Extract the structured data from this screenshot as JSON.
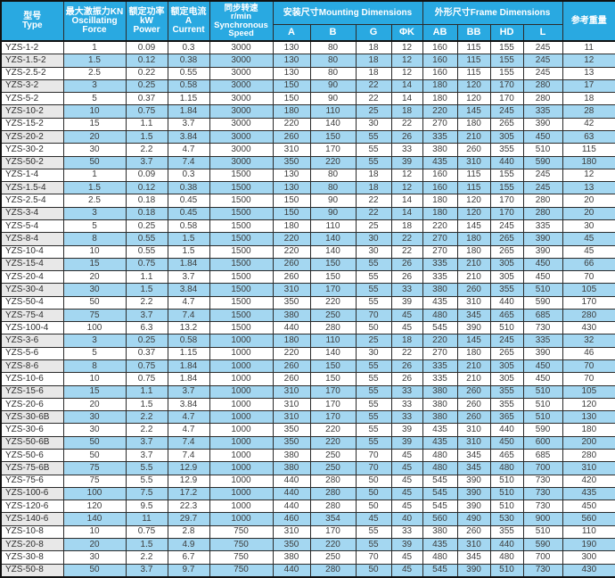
{
  "colors": {
    "header_blue": "#29a9e1",
    "stripe_blue": "#a4d7f1",
    "type_stripe_gray": "#e8e8e8",
    "border_dark": "#111111",
    "text_dark": "#3c3c3c"
  },
  "table": {
    "header_type": "型号\nType",
    "header_force": "最大激振力KN\nOscillating\nForce",
    "header_power": "额定功率\nkW\nPower",
    "header_current": "额定电流\nA\nCurrent",
    "header_speed": "同步转速\nr/min\nSynchronous\nSpeed",
    "header_mounting_group": "安装尺寸Mounting Dimensions",
    "header_frame_group": "外形尺寸Frame Dimensions",
    "header_weight": "参考重量",
    "sub_headers": {
      "a": "A",
      "b": "B",
      "g": "G",
      "phik": "ΦK",
      "ab": "AB",
      "bb": "BB",
      "hd": "HD",
      "l": "L"
    }
  },
  "chart_data": {
    "type": "table",
    "title": "YZS vibration motor specifications",
    "columns": [
      "型号 Type",
      "最大激振力KN Oscillating Force",
      "额定功率 kW Power",
      "额定电流 A Current",
      "同步转速 r/min Synchronous Speed",
      "A",
      "B",
      "G",
      "ΦK",
      "AB",
      "BB",
      "HD",
      "L",
      "参考重量"
    ],
    "column_groups": [
      {
        "label": "安装尺寸Mounting Dimensions",
        "columns": [
          "A",
          "B",
          "G",
          "ΦK"
        ]
      },
      {
        "label": "外形尺寸Frame Dimensions",
        "columns": [
          "AB",
          "BB",
          "HD",
          "L"
        ]
      }
    ],
    "rows": [
      [
        "YZS-1-2",
        "1",
        "0.09",
        "0.3",
        "3000",
        "130",
        "80",
        "18",
        "12",
        "160",
        "115",
        "155",
        "245",
        "11"
      ],
      [
        "YZS-1.5-2",
        "1.5",
        "0.12",
        "0.38",
        "3000",
        "130",
        "80",
        "18",
        "12",
        "160",
        "115",
        "155",
        "245",
        "12"
      ],
      [
        "YZS-2.5-2",
        "2.5",
        "0.22",
        "0.55",
        "3000",
        "130",
        "80",
        "18",
        "12",
        "160",
        "115",
        "155",
        "245",
        "13"
      ],
      [
        "YZS-3-2",
        "3",
        "0.25",
        "0.58",
        "3000",
        "150",
        "90",
        "22",
        "14",
        "180",
        "120",
        "170",
        "280",
        "17"
      ],
      [
        "YZS-5-2",
        "5",
        "0.37",
        "1.15",
        "3000",
        "150",
        "90",
        "22",
        "14",
        "180",
        "120",
        "170",
        "280",
        "18"
      ],
      [
        "YZS-10-2",
        "10",
        "0.75",
        "1.84",
        "3000",
        "180",
        "110",
        "25",
        "18",
        "220",
        "145",
        "245",
        "335",
        "28"
      ],
      [
        "YZS-15-2",
        "15",
        "1.1",
        "3.7",
        "3000",
        "220",
        "140",
        "30",
        "22",
        "270",
        "180",
        "265",
        "390",
        "42"
      ],
      [
        "YZS-20-2",
        "20",
        "1.5",
        "3.84",
        "3000",
        "260",
        "150",
        "55",
        "26",
        "335",
        "210",
        "305",
        "450",
        "63"
      ],
      [
        "YZS-30-2",
        "30",
        "2.2",
        "4.7",
        "3000",
        "310",
        "170",
        "55",
        "33",
        "380",
        "260",
        "355",
        "510",
        "115"
      ],
      [
        "YZS-50-2",
        "50",
        "3.7",
        "7.4",
        "3000",
        "350",
        "220",
        "55",
        "39",
        "435",
        "310",
        "440",
        "590",
        "180"
      ],
      [
        "YZS-1-4",
        "1",
        "0.09",
        "0.3",
        "1500",
        "130",
        "80",
        "18",
        "12",
        "160",
        "115",
        "155",
        "245",
        "12"
      ],
      [
        "YZS-1.5-4",
        "1.5",
        "0.12",
        "0.38",
        "1500",
        "130",
        "80",
        "18",
        "12",
        "160",
        "115",
        "155",
        "245",
        "13"
      ],
      [
        "YZS-2.5-4",
        "2.5",
        "0.18",
        "0.45",
        "1500",
        "150",
        "90",
        "22",
        "14",
        "180",
        "120",
        "170",
        "280",
        "20"
      ],
      [
        "YZS-3-4",
        "3",
        "0.18",
        "0.45",
        "1500",
        "150",
        "90",
        "22",
        "14",
        "180",
        "120",
        "170",
        "280",
        "20"
      ],
      [
        "YZS-5-4",
        "5",
        "0.25",
        "0.58",
        "1500",
        "180",
        "110",
        "25",
        "18",
        "220",
        "145",
        "245",
        "335",
        "30"
      ],
      [
        "YZS-8-4",
        "8",
        "0.55",
        "1.5",
        "1500",
        "220",
        "140",
        "30",
        "22",
        "270",
        "180",
        "265",
        "390",
        "45"
      ],
      [
        "YZS-10-4",
        "10",
        "0.55",
        "1.5",
        "1500",
        "220",
        "140",
        "30",
        "22",
        "270",
        "180",
        "265",
        "390",
        "45"
      ],
      [
        "YZS-15-4",
        "15",
        "0.75",
        "1.84",
        "1500",
        "260",
        "150",
        "55",
        "26",
        "335",
        "210",
        "305",
        "450",
        "66"
      ],
      [
        "YZS-20-4",
        "20",
        "1.1",
        "3.7",
        "1500",
        "260",
        "150",
        "55",
        "26",
        "335",
        "210",
        "305",
        "450",
        "70"
      ],
      [
        "YZS-30-4",
        "30",
        "1.5",
        "3.84",
        "1500",
        "310",
        "170",
        "55",
        "33",
        "380",
        "260",
        "355",
        "510",
        "105"
      ],
      [
        "YZS-50-4",
        "50",
        "2.2",
        "4.7",
        "1500",
        "350",
        "220",
        "55",
        "39",
        "435",
        "310",
        "440",
        "590",
        "170"
      ],
      [
        "YZS-75-4",
        "75",
        "3.7",
        "7.4",
        "1500",
        "380",
        "250",
        "70",
        "45",
        "480",
        "345",
        "465",
        "685",
        "280"
      ],
      [
        "YZS-100-4",
        "100",
        "6.3",
        "13.2",
        "1500",
        "440",
        "280",
        "50",
        "45",
        "545",
        "390",
        "510",
        "730",
        "430"
      ],
      [
        "YZS-3-6",
        "3",
        "0.25",
        "0.58",
        "1000",
        "180",
        "110",
        "25",
        "18",
        "220",
        "145",
        "245",
        "335",
        "32"
      ],
      [
        "YZS-5-6",
        "5",
        "0.37",
        "1.15",
        "1000",
        "220",
        "140",
        "30",
        "22",
        "270",
        "180",
        "265",
        "390",
        "46"
      ],
      [
        "YZS-8-6",
        "8",
        "0.75",
        "1.84",
        "1000",
        "260",
        "150",
        "55",
        "26",
        "335",
        "210",
        "305",
        "450",
        "70"
      ],
      [
        "YZS-10-6",
        "10",
        "0.75",
        "1.84",
        "1000",
        "260",
        "150",
        "55",
        "26",
        "335",
        "210",
        "305",
        "450",
        "70"
      ],
      [
        "YZS-15-6",
        "15",
        "1.1",
        "3.7",
        "1000",
        "310",
        "170",
        "55",
        "33",
        "380",
        "260",
        "355",
        "510",
        "105"
      ],
      [
        "YZS-20-6",
        "20",
        "1.5",
        "3.84",
        "1000",
        "310",
        "170",
        "55",
        "33",
        "380",
        "260",
        "355",
        "510",
        "120"
      ],
      [
        "YZS-30-6B",
        "30",
        "2.2",
        "4.7",
        "1000",
        "310",
        "170",
        "55",
        "33",
        "380",
        "260",
        "365",
        "510",
        "130"
      ],
      [
        "YZS-30-6",
        "30",
        "2.2",
        "4.7",
        "1000",
        "350",
        "220",
        "55",
        "39",
        "435",
        "310",
        "440",
        "590",
        "180"
      ],
      [
        "YZS-50-6B",
        "50",
        "3.7",
        "7.4",
        "1000",
        "350",
        "220",
        "55",
        "39",
        "435",
        "310",
        "450",
        "600",
        "200"
      ],
      [
        "YZS-50-6",
        "50",
        "3.7",
        "7.4",
        "1000",
        "380",
        "250",
        "70",
        "45",
        "480",
        "345",
        "465",
        "685",
        "280"
      ],
      [
        "YZS-75-6B",
        "75",
        "5.5",
        "12.9",
        "1000",
        "380",
        "250",
        "70",
        "45",
        "480",
        "345",
        "480",
        "700",
        "310"
      ],
      [
        "YZS-75-6",
        "75",
        "5.5",
        "12.9",
        "1000",
        "440",
        "280",
        "50",
        "45",
        "545",
        "390",
        "510",
        "730",
        "420"
      ],
      [
        "YZS-100-6",
        "100",
        "7.5",
        "17.2",
        "1000",
        "440",
        "280",
        "50",
        "45",
        "545",
        "390",
        "510",
        "730",
        "435"
      ],
      [
        "YZS-120-6",
        "120",
        "9.5",
        "22.3",
        "1000",
        "440",
        "280",
        "50",
        "45",
        "545",
        "390",
        "510",
        "730",
        "450"
      ],
      [
        "YZS-140-6",
        "140",
        "11",
        "29.7",
        "1000",
        "460",
        "354",
        "45",
        "40",
        "560",
        "490",
        "530",
        "900",
        "560"
      ],
      [
        "YZS-10-8",
        "10",
        "0.75",
        "2.8",
        "750",
        "310",
        "170",
        "55",
        "33",
        "380",
        "260",
        "355",
        "510",
        "110"
      ],
      [
        "YZS-20-8",
        "20",
        "1.5",
        "4.9",
        "750",
        "350",
        "220",
        "55",
        "39",
        "435",
        "310",
        "440",
        "590",
        "190"
      ],
      [
        "YZS-30-8",
        "30",
        "2.2",
        "6.7",
        "750",
        "380",
        "250",
        "70",
        "45",
        "480",
        "345",
        "480",
        "700",
        "300"
      ],
      [
        "YZS-50-8",
        "50",
        "3.7",
        "9.7",
        "750",
        "440",
        "280",
        "50",
        "45",
        "545",
        "390",
        "510",
        "730",
        "430"
      ]
    ]
  }
}
